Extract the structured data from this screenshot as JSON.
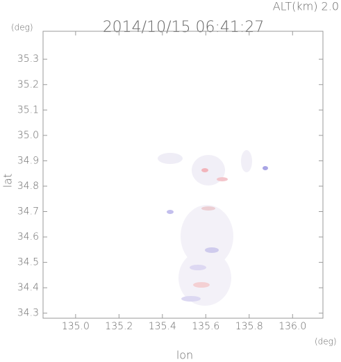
{
  "chart_data": {
    "type": "map",
    "title": "2014/10/15 06:41:27",
    "altitude_label": "ALT(km) 2.0",
    "y_unit": "(deg)",
    "x_unit": "(deg)",
    "xlabel": "lon",
    "ylabel": "lat",
    "xlim": [
      134.85,
      136.14
    ],
    "ylim": [
      34.28,
      35.41
    ],
    "xticks": [
      {
        "value": 135,
        "label": "135.0"
      },
      135.2,
      135.4,
      135.6,
      135.8,
      {
        "value": 136,
        "label": "136.0"
      }
    ],
    "yticks": [
      34.3,
      34.4,
      34.5,
      34.6,
      34.7,
      34.8,
      34.9,
      {
        "value": 35,
        "label": "35.0"
      },
      35.1,
      35.2,
      35.3
    ]
  }
}
